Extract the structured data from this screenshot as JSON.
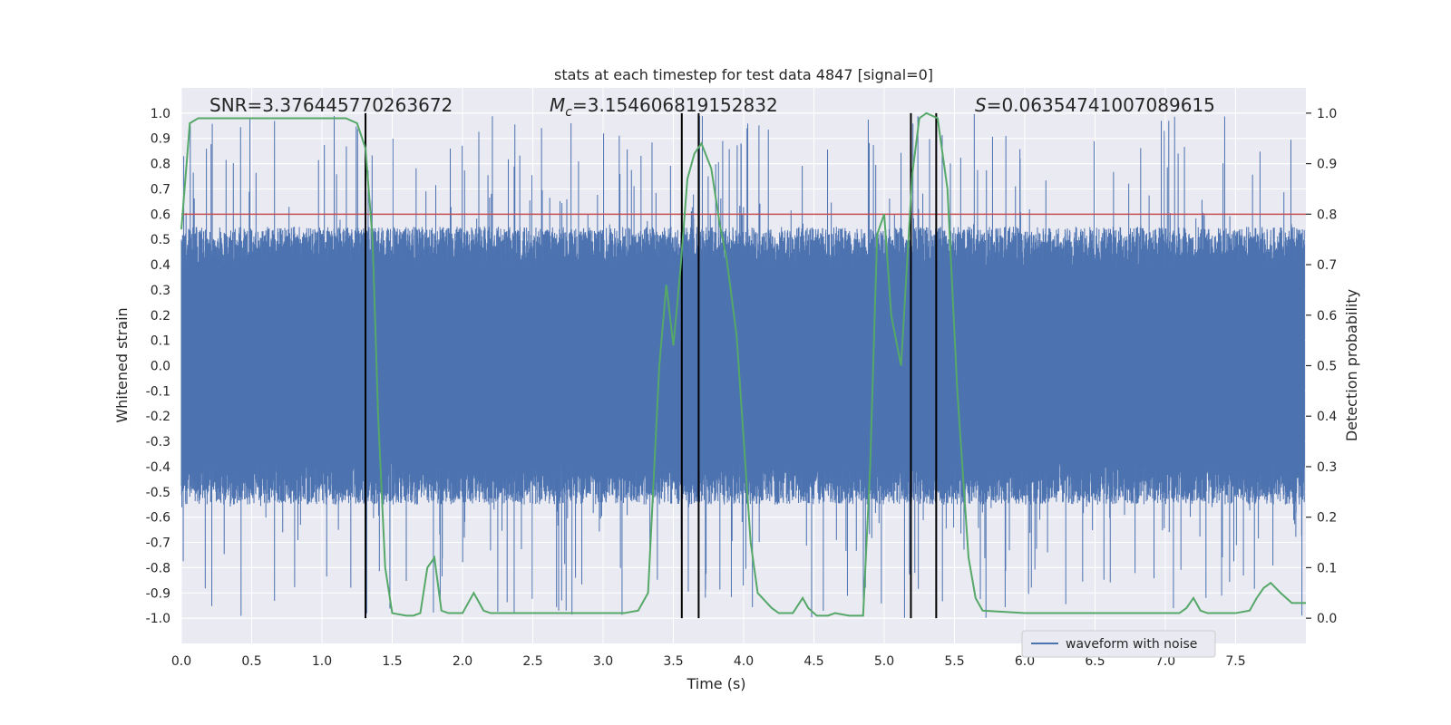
{
  "chart_data": {
    "type": "line",
    "title": "stats at each timestep for test data 4847 [signal=0]",
    "xlabel": "Time (s)",
    "ylabel_left": "Whitened strain",
    "ylabel_right": "Detection probability",
    "xlim": [
      0.0,
      8.0
    ],
    "ylim_left": [
      -1.1,
      1.1
    ],
    "ylim_right": [
      -0.05,
      1.05
    ],
    "x_ticks": [
      "0.0",
      "0.5",
      "1.0",
      "1.5",
      "2.0",
      "2.5",
      "3.0",
      "3.5",
      "4.0",
      "4.5",
      "5.0",
      "5.5",
      "6.0",
      "6.5",
      "7.0",
      "7.5"
    ],
    "y_ticks_left": [
      "1.0",
      "0.9",
      "0.8",
      "0.7",
      "0.6",
      "0.5",
      "0.4",
      "0.3",
      "0.2",
      "0.1",
      "0.0",
      "-0.1",
      "-0.2",
      "-0.3",
      "-0.4",
      "-0.5",
      "-0.6",
      "-0.7",
      "-0.8",
      "-0.9",
      "-1.0"
    ],
    "y_ticks_right": [
      "1.0",
      "0.9",
      "0.8",
      "0.7",
      "0.6",
      "0.5",
      "0.4",
      "0.3",
      "0.2",
      "0.1",
      "0.0"
    ],
    "grid": true,
    "legend": {
      "location": "lower-right",
      "entries": [
        "waveform with noise"
      ]
    },
    "annotations": {
      "snr_label": "SNR=3.376445770263672",
      "mc_symbol": "M",
      "mc_subscript": "c",
      "mc_value": "=3.154606819152832",
      "s_symbol": "S",
      "s_value": "=0.06354741007089615"
    },
    "threshold": 0.8,
    "waveform": {
      "name": "waveform with noise",
      "band_core": 0.38,
      "band_typical": 0.55,
      "spike_max": 1.0
    },
    "detection_probability": {
      "name": "detection probability",
      "x": [
        0.0,
        0.06,
        0.12,
        0.2,
        0.4,
        0.6,
        0.8,
        1.0,
        1.1,
        1.17,
        1.25,
        1.31,
        1.36,
        1.4,
        1.45,
        1.5,
        1.6,
        1.65,
        1.7,
        1.75,
        1.8,
        1.85,
        1.9,
        2.0,
        2.08,
        2.15,
        2.2,
        2.4,
        3.0,
        3.15,
        3.25,
        3.32,
        3.4,
        3.45,
        3.5,
        3.55,
        3.6,
        3.65,
        3.7,
        3.77,
        3.83,
        3.88,
        3.95,
        4.05,
        4.1,
        4.2,
        4.25,
        4.35,
        4.42,
        4.46,
        4.52,
        4.6,
        4.65,
        4.75,
        4.85,
        4.9,
        4.95,
        5.0,
        5.05,
        5.12,
        5.2,
        5.25,
        5.3,
        5.38,
        5.45,
        5.52,
        5.6,
        5.65,
        5.7,
        6.0,
        6.5,
        7.0,
        7.1,
        7.15,
        7.2,
        7.25,
        7.3,
        7.5,
        7.6,
        7.65,
        7.7,
        7.75,
        7.82,
        7.9,
        8.0
      ],
      "y": [
        0.77,
        0.98,
        0.99,
        0.99,
        0.99,
        0.99,
        0.99,
        0.99,
        0.99,
        0.99,
        0.98,
        0.93,
        0.75,
        0.4,
        0.1,
        0.01,
        0.005,
        0.005,
        0.01,
        0.1,
        0.12,
        0.015,
        0.01,
        0.01,
        0.05,
        0.015,
        0.01,
        0.01,
        0.01,
        0.01,
        0.015,
        0.05,
        0.5,
        0.66,
        0.54,
        0.69,
        0.87,
        0.92,
        0.94,
        0.89,
        0.78,
        0.71,
        0.56,
        0.15,
        0.05,
        0.02,
        0.01,
        0.01,
        0.04,
        0.02,
        0.005,
        0.005,
        0.01,
        0.005,
        0.005,
        0.3,
        0.76,
        0.8,
        0.6,
        0.5,
        0.88,
        0.99,
        1.0,
        0.99,
        0.85,
        0.45,
        0.12,
        0.04,
        0.015,
        0.01,
        0.01,
        0.01,
        0.01,
        0.02,
        0.04,
        0.015,
        0.01,
        0.01,
        0.015,
        0.04,
        0.06,
        0.07,
        0.05,
        0.03,
        0.03
      ]
    },
    "vlines": [
      1.31,
      3.56,
      3.68,
      5.19,
      5.37
    ]
  },
  "colors": {
    "waveform": "#4c72b0",
    "probability": "#55a868",
    "threshold": "#c44e52",
    "vline": "#000000",
    "plot_bg": "#eaeaf2",
    "grid": "#ffffff",
    "text": "#262626"
  }
}
